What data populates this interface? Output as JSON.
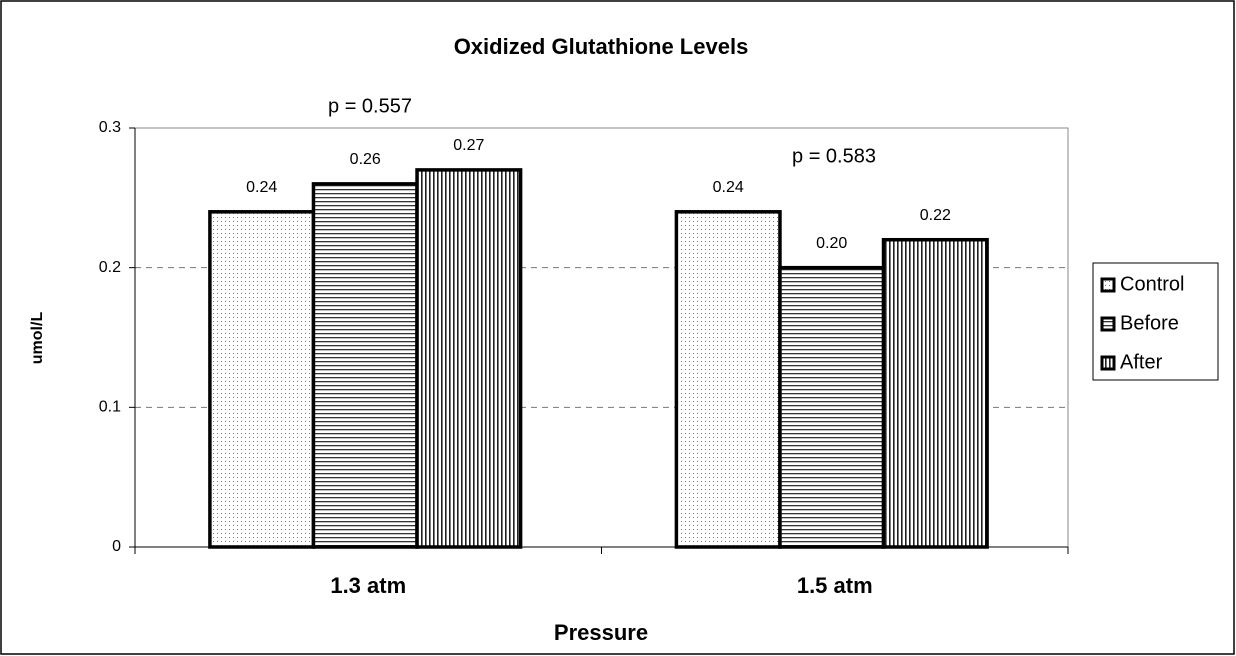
{
  "chart_data": {
    "type": "bar",
    "title": "Oxidized Glutathione Levels",
    "x_label": "Pressure",
    "y_label": "umol/L",
    "categories": [
      "1.3 atm",
      "1.5 atm"
    ],
    "series": [
      {
        "name": "Control",
        "color": "#000000",
        "values": [
          0.24,
          0.24
        ],
        "value_labels": [
          "0.24",
          "0.24"
        ]
      },
      {
        "name": "Before",
        "color": "#000000",
        "values": [
          0.26,
          0.2
        ],
        "value_labels": [
          "0.26",
          "0.20"
        ]
      },
      {
        "name": "After",
        "color": "#000000",
        "values": [
          0.27,
          0.22
        ],
        "value_labels": [
          "0.27",
          "0.22"
        ]
      }
    ],
    "annotations": [
      "p = 0.557",
      "p = 0.583"
    ],
    "ylim": [
      0,
      0.3
    ],
    "yticks": [
      0,
      0.1,
      0.2,
      0.3
    ],
    "grid": true,
    "legend": "right"
  }
}
